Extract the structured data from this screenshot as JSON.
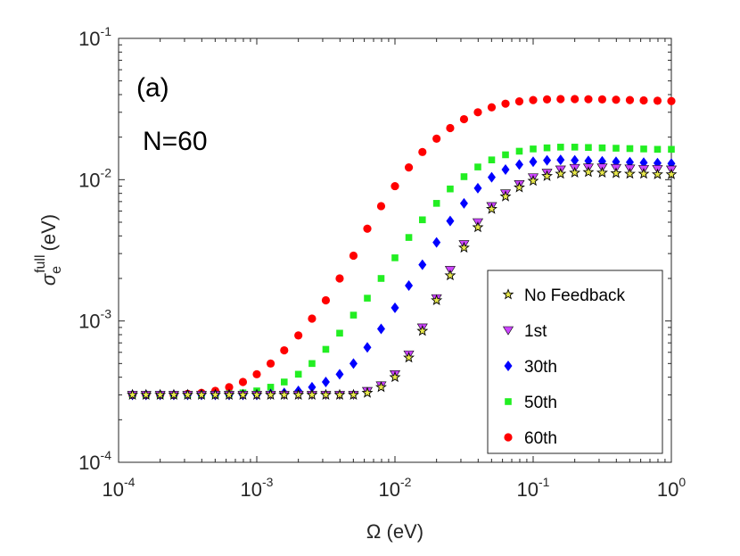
{
  "chart_data": {
    "type": "scatter",
    "xscale": "log",
    "yscale": "log",
    "xlim": [
      0.0001,
      1
    ],
    "ylim": [
      0.0001,
      0.1
    ],
    "grid": false,
    "legend_position": "bottom-right",
    "xlabel": {
      "symbol": "Ω",
      "unit": "(eV)"
    },
    "ylabel": {
      "symbol": "σ",
      "subscript": "e",
      "superscript": "full",
      "unit": "(eV)"
    },
    "x_ticks": [
      {
        "value": 0.0001,
        "base": "10",
        "exp": "-4"
      },
      {
        "value": 0.001,
        "base": "10",
        "exp": "-3"
      },
      {
        "value": 0.01,
        "base": "10",
        "exp": "-2"
      },
      {
        "value": 0.1,
        "base": "10",
        "exp": "-1"
      },
      {
        "value": 1,
        "base": "10",
        "exp": "0"
      }
    ],
    "y_ticks": [
      {
        "value": 0.0001,
        "base": "10",
        "exp": "-4"
      },
      {
        "value": 0.001,
        "base": "10",
        "exp": "-3"
      },
      {
        "value": 0.01,
        "base": "10",
        "exp": "-2"
      },
      {
        "value": 0.1,
        "base": "10",
        "exp": "-1"
      }
    ],
    "annotations": [
      "(a)",
      "N=60"
    ],
    "x": [
      0.000126,
      0.000158,
      0.0002,
      0.000251,
      0.000316,
      0.000398,
      0.000501,
      0.000631,
      0.000794,
      0.001,
      0.00126,
      0.00158,
      0.002,
      0.00251,
      0.00316,
      0.00398,
      0.00501,
      0.00631,
      0.00794,
      0.01,
      0.0126,
      0.0158,
      0.02,
      0.0251,
      0.0316,
      0.0398,
      0.0501,
      0.0631,
      0.0794,
      0.1,
      0.126,
      0.158,
      0.2,
      0.251,
      0.316,
      0.398,
      0.501,
      0.631,
      0.794,
      1.0
    ],
    "series": [
      {
        "name": "No Feedback",
        "marker": "star",
        "color": "#e8e84a",
        "values": [
          0.0003,
          0.0003,
          0.0003,
          0.0003,
          0.0003,
          0.0003,
          0.0003,
          0.0003,
          0.0003,
          0.0003,
          0.0003,
          0.0003,
          0.0003,
          0.0003,
          0.0003,
          0.0003,
          0.0003,
          0.00031,
          0.00034,
          0.0004,
          0.00055,
          0.00085,
          0.0014,
          0.0021,
          0.0033,
          0.0046,
          0.0062,
          0.0076,
          0.0088,
          0.0098,
          0.0106,
          0.011,
          0.0112,
          0.0113,
          0.0112,
          0.0111,
          0.011,
          0.011,
          0.0109,
          0.0109
        ]
      },
      {
        "name": "1st",
        "marker": "triangle-down",
        "color": "#cc44ff",
        "values": [
          0.0003,
          0.0003,
          0.0003,
          0.0003,
          0.0003,
          0.0003,
          0.0003,
          0.0003,
          0.0003,
          0.0003,
          0.0003,
          0.0003,
          0.0003,
          0.0003,
          0.0003,
          0.0003,
          0.0003,
          0.00032,
          0.00035,
          0.00042,
          0.00058,
          0.0009,
          0.00145,
          0.0023,
          0.0035,
          0.005,
          0.0065,
          0.008,
          0.0093,
          0.0104,
          0.0112,
          0.0118,
          0.0121,
          0.0122,
          0.0122,
          0.0121,
          0.012,
          0.0119,
          0.0119,
          0.0118
        ]
      },
      {
        "name": "30th",
        "marker": "diamond",
        "color": "#0000ff",
        "values": [
          0.0003,
          0.0003,
          0.0003,
          0.0003,
          0.0003,
          0.0003,
          0.0003,
          0.0003,
          0.0003,
          0.0003,
          0.000305,
          0.00031,
          0.00032,
          0.00034,
          0.00037,
          0.00042,
          0.0005,
          0.00065,
          0.00088,
          0.00124,
          0.00178,
          0.0025,
          0.0036,
          0.0051,
          0.0068,
          0.0087,
          0.0104,
          0.0118,
          0.0128,
          0.0134,
          0.0137,
          0.0138,
          0.0137,
          0.0136,
          0.0135,
          0.0134,
          0.0133,
          0.0132,
          0.0131,
          0.013
        ]
      },
      {
        "name": "50th",
        "marker": "square",
        "color": "#22ee22",
        "values": [
          0.0003,
          0.0003,
          0.0003,
          0.0003,
          0.0003,
          0.0003,
          0.0003,
          0.000305,
          0.00031,
          0.00032,
          0.00034,
          0.00037,
          0.00042,
          0.0005,
          0.00063,
          0.00082,
          0.0011,
          0.00145,
          0.002,
          0.0028,
          0.0039,
          0.0052,
          0.0068,
          0.0086,
          0.0105,
          0.0123,
          0.0138,
          0.015,
          0.0159,
          0.0165,
          0.0168,
          0.017,
          0.017,
          0.0169,
          0.0168,
          0.0167,
          0.0166,
          0.0165,
          0.0164,
          0.0164
        ]
      },
      {
        "name": "60th",
        "marker": "circle",
        "color": "#ff0000",
        "values": [
          0.0003,
          0.0003,
          0.0003,
          0.0003,
          0.000305,
          0.00031,
          0.00032,
          0.00034,
          0.00037,
          0.00042,
          0.0005,
          0.00062,
          0.00079,
          0.00104,
          0.0014,
          0.002,
          0.0029,
          0.0045,
          0.0065,
          0.009,
          0.0122,
          0.0157,
          0.0195,
          0.0232,
          0.0268,
          0.03,
          0.0325,
          0.0345,
          0.0358,
          0.0366,
          0.037,
          0.0372,
          0.0372,
          0.0371,
          0.037,
          0.0368,
          0.0366,
          0.0364,
          0.0362,
          0.036
        ]
      }
    ]
  }
}
